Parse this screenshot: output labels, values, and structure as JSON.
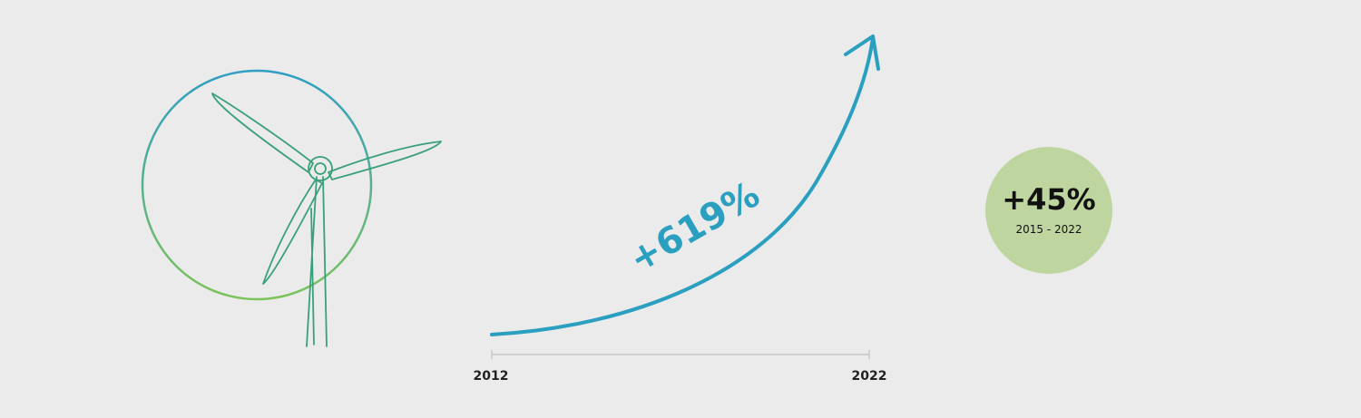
{
  "growth": {
    "label": "+619%",
    "start_year": "2012",
    "end_year": "2022"
  },
  "badge": {
    "value": "+45%",
    "period": "2015 - 2022"
  }
}
